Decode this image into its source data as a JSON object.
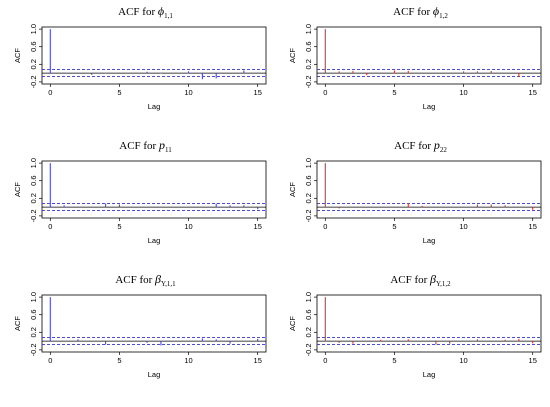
{
  "chart_data": [
    {
      "type": "bar",
      "title_prefix": "ACF for",
      "title_symbol": "ϕ",
      "title_subscript": "1,1",
      "xlabel": "Lag",
      "ylabel": "ACF",
      "xlim": [
        0,
        15
      ],
      "ylim": [
        -0.2,
        1.0
      ],
      "xticks": [
        0,
        5,
        10,
        15
      ],
      "yticks": [
        -0.2,
        0.2,
        0.6,
        1.0
      ],
      "ytick_labels": [
        "-0.2",
        "0.2",
        "0.6",
        "1.0"
      ],
      "xtick_labels": [
        "0",
        "5",
        "10",
        "15"
      ],
      "ci": 0.08,
      "bar_color": "#4a4ad6",
      "ci_color": "#3333cc",
      "lags": [
        0,
        1,
        2,
        3,
        4,
        5,
        6,
        7,
        8,
        9,
        10,
        11,
        12,
        13,
        14,
        15
      ],
      "values": [
        1.0,
        0.01,
        0.0,
        -0.04,
        -0.01,
        0.01,
        0.0,
        0.03,
        -0.01,
        0.0,
        0.04,
        -0.14,
        -0.12,
        0.0,
        0.06,
        0.01
      ]
    },
    {
      "type": "bar",
      "title_prefix": "ACF for",
      "title_symbol": "ϕ",
      "title_subscript": "1,2",
      "xlabel": "Lag",
      "ylabel": "ACF",
      "xlim": [
        0,
        15
      ],
      "ylim": [
        -0.2,
        1.0
      ],
      "xticks": [
        0,
        5,
        10,
        15
      ],
      "yticks": [
        -0.2,
        0.2,
        0.6,
        1.0
      ],
      "ytick_labels": [
        "-0.2",
        "0.2",
        "0.6",
        "1.0"
      ],
      "xtick_labels": [
        "0",
        "5",
        "10",
        "15"
      ],
      "ci": 0.08,
      "bar_color": "#dd3333",
      "ci_color": "#3333cc",
      "lags": [
        0,
        1,
        2,
        3,
        4,
        5,
        6,
        7,
        8,
        9,
        10,
        11,
        12,
        13,
        14,
        15
      ],
      "values": [
        1.0,
        0.04,
        0.05,
        -0.05,
        0.0,
        0.06,
        0.05,
        0.0,
        0.0,
        0.0,
        0.04,
        0.04,
        0.05,
        0.0,
        -0.08,
        0.0
      ]
    },
    {
      "type": "bar",
      "title_prefix": "ACF for",
      "title_symbol": "p",
      "title_subscript": "11",
      "xlabel": "Lag",
      "ylabel": "ACF",
      "xlim": [
        0,
        15
      ],
      "ylim": [
        -0.2,
        1.0
      ],
      "xticks": [
        0,
        5,
        10,
        15
      ],
      "yticks": [
        -0.2,
        0.2,
        0.6,
        1.0
      ],
      "ytick_labels": [
        "-0.2",
        "0.2",
        "0.6",
        "1.0"
      ],
      "xtick_labels": [
        "0",
        "5",
        "10",
        "15"
      ],
      "ci": 0.08,
      "bar_color": "#4a4ad6",
      "ci_color": "#3333cc",
      "lags": [
        0,
        1,
        2,
        3,
        4,
        5,
        6,
        7,
        8,
        9,
        10,
        11,
        12,
        13,
        14,
        15
      ],
      "values": [
        1.0,
        0.04,
        0.0,
        0.0,
        0.08,
        0.06,
        0.0,
        0.0,
        0.0,
        0.0,
        0.0,
        0.0,
        0.08,
        0.04,
        0.04,
        -0.05
      ]
    },
    {
      "type": "bar",
      "title_prefix": "ACF for",
      "title_symbol": "p",
      "title_subscript": "22",
      "xlabel": "Lag",
      "ylabel": "ACF",
      "xlim": [
        0,
        15
      ],
      "ylim": [
        -0.2,
        1.0
      ],
      "xticks": [
        0,
        5,
        10,
        15
      ],
      "yticks": [
        -0.2,
        0.2,
        0.6,
        1.0
      ],
      "ytick_labels": [
        "-0.2",
        "0.2",
        "0.6",
        "1.0"
      ],
      "xtick_labels": [
        "0",
        "5",
        "10",
        "15"
      ],
      "ci": 0.08,
      "bar_color": "#dd3333",
      "ci_color": "#3333cc",
      "lags": [
        0,
        1,
        2,
        3,
        4,
        5,
        6,
        7,
        8,
        9,
        10,
        11,
        12,
        13,
        14,
        15
      ],
      "values": [
        1.0,
        -0.03,
        0.0,
        0.0,
        0.0,
        0.0,
        0.08,
        0.03,
        0.0,
        0.0,
        0.0,
        0.06,
        0.06,
        0.04,
        0.0,
        -0.06
      ]
    },
    {
      "type": "bar",
      "title_prefix": "ACF for",
      "title_symbol": "β",
      "title_subscript": "Y,1,1",
      "xlabel": "Lag",
      "ylabel": "ACF",
      "xlim": [
        0,
        15
      ],
      "ylim": [
        -0.2,
        1.0
      ],
      "xticks": [
        0,
        5,
        10,
        15
      ],
      "yticks": [
        -0.2,
        0.2,
        0.6,
        1.0
      ],
      "ytick_labels": [
        "-0.2",
        "0.2",
        "0.6",
        "1.0"
      ],
      "xtick_labels": [
        "0",
        "5",
        "10",
        "15"
      ],
      "ci": 0.08,
      "bar_color": "#4a4ad6",
      "ci_color": "#3333cc",
      "lags": [
        0,
        1,
        2,
        3,
        4,
        5,
        6,
        7,
        8,
        9,
        10,
        11,
        12,
        13,
        14,
        15
      ],
      "values": [
        1.0,
        0.0,
        0.04,
        0.0,
        -0.08,
        0.0,
        0.0,
        -0.04,
        -0.1,
        0.0,
        0.0,
        0.06,
        0.04,
        -0.06,
        0.0,
        0.05
      ]
    },
    {
      "type": "bar",
      "title_prefix": "ACF for",
      "title_symbol": "β",
      "title_subscript": "Y,1,2",
      "xlabel": "Lag",
      "ylabel": "ACF",
      "xlim": [
        0,
        15
      ],
      "ylim": [
        -0.2,
        1.0
      ],
      "xticks": [
        0,
        5,
        10,
        15
      ],
      "yticks": [
        -0.2,
        0.2,
        0.6,
        1.0
      ],
      "ytick_labels": [
        "-0.2",
        "0.2",
        "0.6",
        "1.0"
      ],
      "xtick_labels": [
        "0",
        "5",
        "10",
        "15"
      ],
      "ci": 0.08,
      "bar_color": "#dd3333",
      "ci_color": "#3333cc",
      "lags": [
        0,
        1,
        2,
        3,
        4,
        5,
        6,
        7,
        8,
        9,
        10,
        11,
        12,
        13,
        14,
        15
      ],
      "values": [
        1.0,
        -0.04,
        -0.06,
        0.0,
        0.03,
        0.0,
        0.04,
        0.0,
        -0.08,
        -0.06,
        0.0,
        0.04,
        0.0,
        0.03,
        0.05,
        -0.05
      ]
    }
  ]
}
